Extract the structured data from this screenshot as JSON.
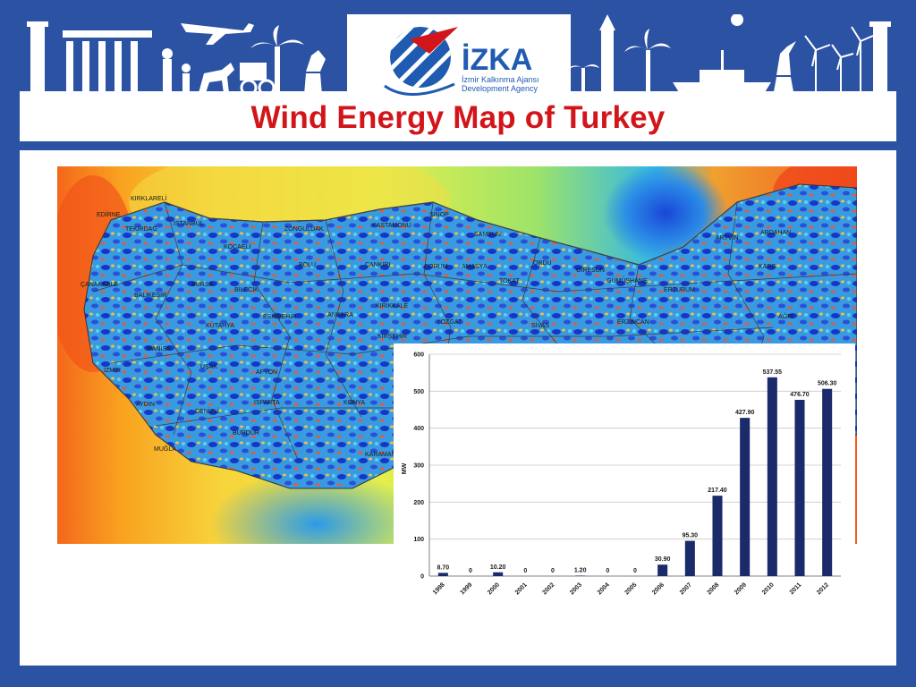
{
  "slide": {
    "title": "Wind Energy Map of Turkey"
  },
  "logo": {
    "name": "İZKA",
    "line1": "İzmir Kalkınma Ajansı",
    "line2": "Development Agency",
    "line1_accent": "İzmir"
  },
  "map_labels": {
    "kirklareli": "KIRKLARELİ",
    "edirne": "EDİRNE",
    "tekirdag": "TEKİRDAĞ",
    "istanbul": "İSTANBUL",
    "kocaeli": "KOCAELİ",
    "zonguldak": "ZONGULDAK",
    "kastamonu": "KASTAMONU",
    "sinop": "SİNOP",
    "samsun": "SAMSUN",
    "bolu": "BOLU",
    "cankiri": "ÇANKIRI",
    "corum": "ÇORUM",
    "amasya": "AMASYA",
    "ordu": "ORDU",
    "artvin": "ARTVİN",
    "ardahan": "ARDAHAN",
    "kars": "KARS",
    "canakkale": "ÇANAKKALE",
    "balikesir": "BALIKESİR",
    "bursa": "BURSA",
    "bilecik": "BİLECİK",
    "eskisehir": "ESKİŞEHİR",
    "ankara": "ANKARA",
    "kirikkale": "KIRIKKALE",
    "yozgat": "YOZGAT",
    "tokat": "TOKAT",
    "sivas": "SİVAS",
    "giresun": "GİRESUN",
    "gumushane": "GÜMÜŞHANE",
    "erzurum": "ERZURUM",
    "erzincan": "ERZİNCAN",
    "agri": "AĞRI",
    "kutahya": "KÜTAHYA",
    "kirsehir": "KIRŞEHİR",
    "manisa": "MANİSA",
    "usak": "UŞAK",
    "afyon": "AFYON",
    "izmir": "İZMİR",
    "aydin": "AYDIN",
    "denizli": "DENİZLİ",
    "isparta": "ISPARTA",
    "konya": "KONYA",
    "mugla": "MUĞLA",
    "burdur": "BURDUR",
    "karaman": "KARAMAN"
  },
  "colors": {
    "frame": "#2b52a3",
    "title": "#d2151b",
    "bar": "#1b2a6b",
    "logo_blue": "#1f5bb0",
    "logo_red": "#d2151b"
  },
  "chart_data": {
    "type": "bar",
    "title": "",
    "xlabel": "",
    "ylabel": "MW",
    "ylim": [
      0,
      600
    ],
    "yticks": [
      "0",
      "100",
      "200",
      "300",
      "400",
      "500",
      "600"
    ],
    "grid": true,
    "categories": [
      "1998",
      "1999",
      "2000",
      "2001",
      "2002",
      "2003",
      "2004",
      "2005",
      "2006",
      "2007",
      "2008",
      "2009",
      "2010",
      "2011",
      "2012"
    ],
    "values": [
      8.7,
      0,
      10.2,
      0,
      0,
      1.2,
      0,
      0,
      30.9,
      95.3,
      217.4,
      427.9,
      537.55,
      476.7,
      506.3
    ],
    "data_labels": [
      "8.70",
      "0",
      "10.20",
      "0",
      "0",
      "1.20",
      "0",
      "0",
      "30.90",
      "95.30",
      "217.40",
      "427.90",
      "537.55",
      "476.70",
      "506.30"
    ]
  }
}
